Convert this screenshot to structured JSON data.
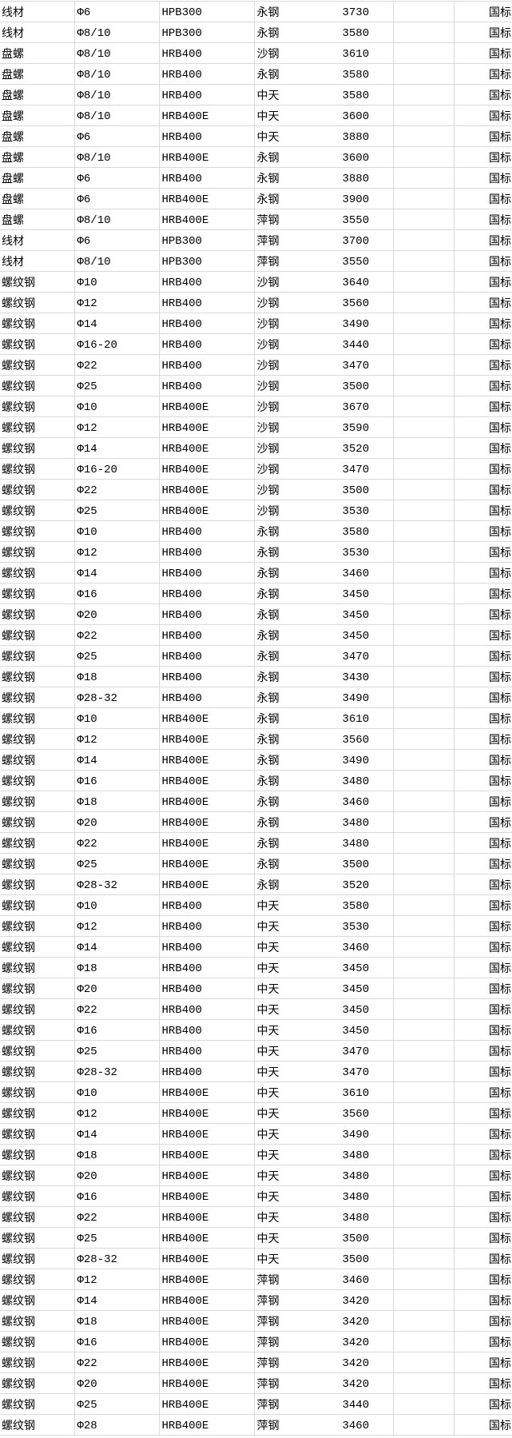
{
  "sheet": {
    "rows": [
      [
        "线材",
        "Φ6",
        "HPB300",
        "永钢",
        "3730",
        "",
        "国标"
      ],
      [
        "线材",
        "Φ8/10",
        "HPB300",
        "永钢",
        "3580",
        "",
        "国标"
      ],
      [
        "盘螺",
        "Φ8/10",
        "HRB400",
        "沙钢",
        "3610",
        "",
        "国标"
      ],
      [
        "盘螺",
        "Φ8/10",
        "HRB400",
        "永钢",
        "3580",
        "",
        "国标"
      ],
      [
        "盘螺",
        "Φ8/10",
        "HRB400",
        "中天",
        "3580",
        "",
        "国标"
      ],
      [
        "盘螺",
        "Φ8/10",
        "HRB400E",
        "中天",
        "3600",
        "",
        "国标"
      ],
      [
        "盘螺",
        "Φ6",
        "HRB400",
        "中天",
        "3880",
        "",
        "国标"
      ],
      [
        "盘螺",
        "Φ8/10",
        "HRB400E",
        "永钢",
        "3600",
        "",
        "国标"
      ],
      [
        "盘螺",
        "Φ6",
        "HRB400",
        "永钢",
        "3880",
        "",
        "国标"
      ],
      [
        "盘螺",
        "Φ6",
        "HRB400E",
        "永钢",
        "3900",
        "",
        "国标"
      ],
      [
        "盘螺",
        "Φ8/10",
        "HRB400E",
        "萍钢",
        "3550",
        "",
        "国标"
      ],
      [
        "线材",
        "Φ6",
        "HPB300",
        "萍钢",
        "3700",
        "",
        "国标"
      ],
      [
        "线材",
        "Φ8/10",
        "HPB300",
        "萍钢",
        "3550",
        "",
        "国标"
      ],
      [
        "螺纹钢",
        "Φ10",
        "HRB400",
        "沙钢",
        "3640",
        "",
        "国标"
      ],
      [
        "螺纹钢",
        "Φ12",
        "HRB400",
        "沙钢",
        "3560",
        "",
        "国标"
      ],
      [
        "螺纹钢",
        "Φ14",
        "HRB400",
        "沙钢",
        "3490",
        "",
        "国标"
      ],
      [
        "螺纹钢",
        "Φ16-20",
        "HRB400",
        "沙钢",
        "3440",
        "",
        "国标"
      ],
      [
        "螺纹钢",
        "Φ22",
        "HRB400",
        "沙钢",
        "3470",
        "",
        "国标"
      ],
      [
        "螺纹钢",
        "Φ25",
        "HRB400",
        "沙钢",
        "3500",
        "",
        "国标"
      ],
      [
        "螺纹钢",
        "Φ10",
        "HRB400E",
        "沙钢",
        "3670",
        "",
        "国标"
      ],
      [
        "螺纹钢",
        "Φ12",
        "HRB400E",
        "沙钢",
        "3590",
        "",
        "国标"
      ],
      [
        "螺纹钢",
        "Φ14",
        "HRB400E",
        "沙钢",
        "3520",
        "",
        "国标"
      ],
      [
        "螺纹钢",
        "Φ16-20",
        "HRB400E",
        "沙钢",
        "3470",
        "",
        "国标"
      ],
      [
        "螺纹钢",
        "Φ22",
        "HRB400E",
        "沙钢",
        "3500",
        "",
        "国标"
      ],
      [
        "螺纹钢",
        "Φ25",
        "HRB400E",
        "沙钢",
        "3530",
        "",
        "国标"
      ],
      [
        "螺纹钢",
        "Φ10",
        "HRB400",
        "永钢",
        "3580",
        "",
        "国标"
      ],
      [
        "螺纹钢",
        "Φ12",
        "HRB400",
        "永钢",
        "3530",
        "",
        "国标"
      ],
      [
        "螺纹钢",
        "Φ14",
        "HRB400",
        "永钢",
        "3460",
        "",
        "国标"
      ],
      [
        "螺纹钢",
        "Φ16",
        "HRB400",
        "永钢",
        "3450",
        "",
        "国标"
      ],
      [
        "螺纹钢",
        "Φ20",
        "HRB400",
        "永钢",
        "3450",
        "",
        "国标"
      ],
      [
        "螺纹钢",
        "Φ22",
        "HRB400",
        "永钢",
        "3450",
        "",
        "国标"
      ],
      [
        "螺纹钢",
        "Φ25",
        "HRB400",
        "永钢",
        "3470",
        "",
        "国标"
      ],
      [
        "螺纹钢",
        "Φ18",
        "HRB400",
        "永钢",
        "3430",
        "",
        "国标"
      ],
      [
        "螺纹钢",
        "Φ28-32",
        "HRB400",
        "永钢",
        "3490",
        "",
        "国标"
      ],
      [
        "螺纹钢",
        "Φ10",
        "HRB400E",
        "永钢",
        "3610",
        "",
        "国标"
      ],
      [
        "螺纹钢",
        "Φ12",
        "HRB400E",
        "永钢",
        "3560",
        "",
        "国标"
      ],
      [
        "螺纹钢",
        "Φ14",
        "HRB400E",
        "永钢",
        "3490",
        "",
        "国标"
      ],
      [
        "螺纹钢",
        "Φ16",
        "HRB400E",
        "永钢",
        "3480",
        "",
        "国标"
      ],
      [
        "螺纹钢",
        "Φ18",
        "HRB400E",
        "永钢",
        "3460",
        "",
        "国标"
      ],
      [
        "螺纹钢",
        "Φ20",
        "HRB400E",
        "永钢",
        "3480",
        "",
        "国标"
      ],
      [
        "螺纹钢",
        "Φ22",
        "HRB400E",
        "永钢",
        "3480",
        "",
        "国标"
      ],
      [
        "螺纹钢",
        "Φ25",
        "HRB400E",
        "永钢",
        "3500",
        "",
        "国标"
      ],
      [
        "螺纹钢",
        "Φ28-32",
        "HRB400E",
        "永钢",
        "3520",
        "",
        "国标"
      ],
      [
        "螺纹钢",
        "Φ10",
        "HRB400",
        "中天",
        "3580",
        "",
        "国标"
      ],
      [
        "螺纹钢",
        "Φ12",
        "HRB400",
        "中天",
        "3530",
        "",
        "国标"
      ],
      [
        "螺纹钢",
        "Φ14",
        "HRB400",
        "中天",
        "3460",
        "",
        "国标"
      ],
      [
        "螺纹钢",
        "Φ18",
        "HRB400",
        "中天",
        "3450",
        "",
        "国标"
      ],
      [
        "螺纹钢",
        "Φ20",
        "HRB400",
        "中天",
        "3450",
        "",
        "国标"
      ],
      [
        "螺纹钢",
        "Φ22",
        "HRB400",
        "中天",
        "3450",
        "",
        "国标"
      ],
      [
        "螺纹钢",
        "Φ16",
        "HRB400",
        "中天",
        "3450",
        "",
        "国标"
      ],
      [
        "螺纹钢",
        "Φ25",
        "HRB400",
        "中天",
        "3470",
        "",
        "国标"
      ],
      [
        "螺纹钢",
        "Φ28-32",
        "HRB400",
        "中天",
        "3470",
        "",
        "国标"
      ],
      [
        "螺纹钢",
        "Φ10",
        "HRB400E",
        "中天",
        "3610",
        "",
        "国标"
      ],
      [
        "螺纹钢",
        "Φ12",
        "HRB400E",
        "中天",
        "3560",
        "",
        "国标"
      ],
      [
        "螺纹钢",
        "Φ14",
        "HRB400E",
        "中天",
        "3490",
        "",
        "国标"
      ],
      [
        "螺纹钢",
        "Φ18",
        "HRB400E",
        "中天",
        "3480",
        "",
        "国标"
      ],
      [
        "螺纹钢",
        "Φ20",
        "HRB400E",
        "中天",
        "3480",
        "",
        "国标"
      ],
      [
        "螺纹钢",
        "Φ16",
        "HRB400E",
        "中天",
        "3480",
        "",
        "国标"
      ],
      [
        "螺纹钢",
        "Φ22",
        "HRB400E",
        "中天",
        "3480",
        "",
        "国标"
      ],
      [
        "螺纹钢",
        "Φ25",
        "HRB400E",
        "中天",
        "3500",
        "",
        "国标"
      ],
      [
        "螺纹钢",
        "Φ28-32",
        "HRB400E",
        "中天",
        "3500",
        "",
        "国标"
      ],
      [
        "螺纹钢",
        "Φ12",
        "HRB400E",
        "萍钢",
        "3460",
        "",
        "国标"
      ],
      [
        "螺纹钢",
        "Φ14",
        "HRB400E",
        "萍钢",
        "3420",
        "",
        "国标"
      ],
      [
        "螺纹钢",
        "Φ18",
        "HRB400E",
        "萍钢",
        "3420",
        "",
        "国标"
      ],
      [
        "螺纹钢",
        "Φ16",
        "HRB400E",
        "萍钢",
        "3420",
        "",
        "国标"
      ],
      [
        "螺纹钢",
        "Φ22",
        "HRB400E",
        "萍钢",
        "3420",
        "",
        "国标"
      ],
      [
        "螺纹钢",
        "Φ20",
        "HRB400E",
        "萍钢",
        "3420",
        "",
        "国标"
      ],
      [
        "螺纹钢",
        "Φ25",
        "HRB400E",
        "萍钢",
        "3440",
        "",
        "国标"
      ],
      [
        "螺纹钢",
        "Φ28",
        "HRB400E",
        "萍钢",
        "3460",
        "",
        "国标"
      ]
    ]
  }
}
